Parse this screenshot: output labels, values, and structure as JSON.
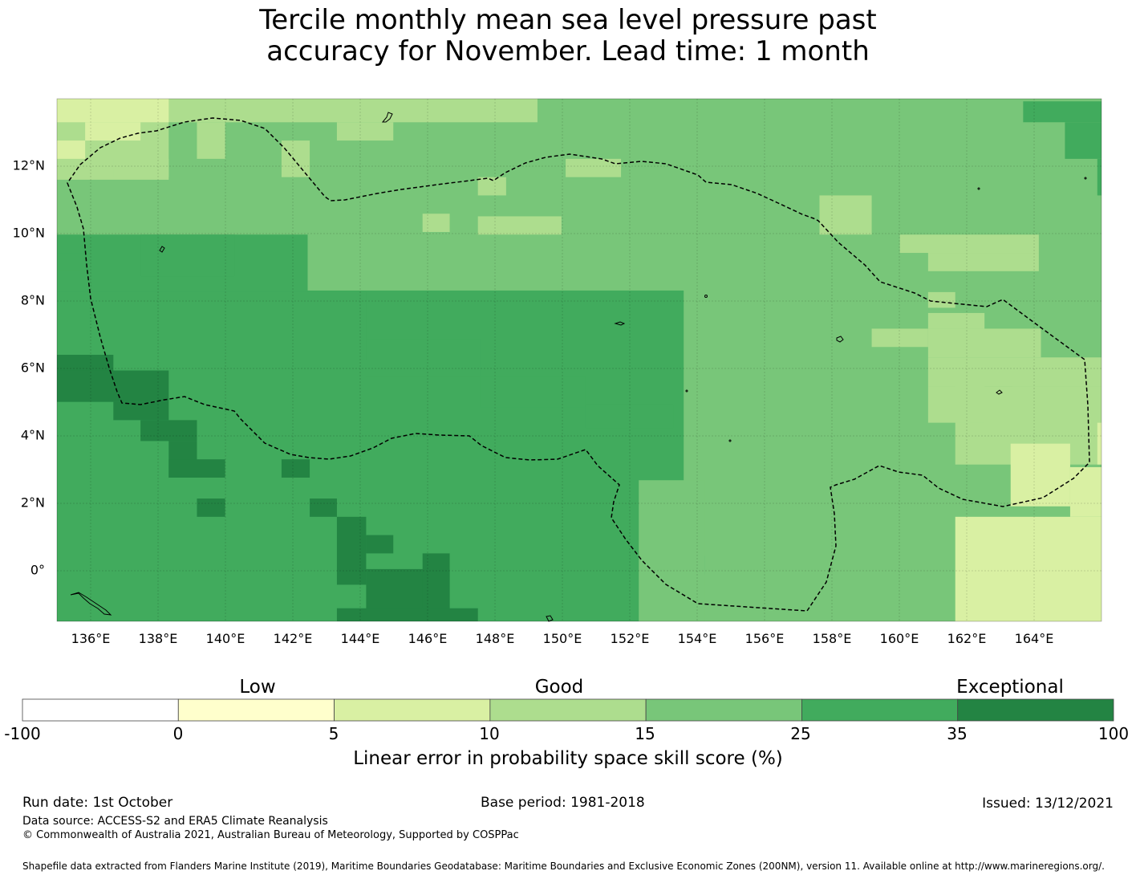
{
  "title": {
    "line1": "Tercile monthly mean sea level pressure past",
    "line2": "accuracy for November. Lead time: 1 month"
  },
  "map": {
    "lon_range": [
      135,
      166
    ],
    "lat_range": [
      -1.5,
      14
    ],
    "x_ticks": [
      "136°E",
      "138°E",
      "140°E",
      "142°E",
      "144°E",
      "146°E",
      "148°E",
      "150°E",
      "152°E",
      "154°E",
      "156°E",
      "158°E",
      "160°E",
      "162°E",
      "164°E"
    ],
    "y_ticks": [
      "12°N",
      "10°N",
      "8°N",
      "6°N",
      "4°N",
      "2°N",
      "0°"
    ]
  },
  "colorbar": {
    "categories": [
      "Low",
      "Good",
      "Exceptional"
    ],
    "boundaries": [
      "-100",
      "0",
      "5",
      "10",
      "15",
      "25",
      "35",
      "100"
    ],
    "colors": [
      "#ffffff",
      "#ffffcc",
      "#d9f0a3",
      "#addd8e",
      "#78c679",
      "#41ab5d",
      "#238443"
    ],
    "label": "Linear error in probability space skill score (%)"
  },
  "footer": {
    "run_date": "Run date: 1st October",
    "base_period": "Base period: 1981-2018",
    "issued": "Issued: 13/12/2021",
    "data_source": "Data source: ACCESS-S2 and ERA5 Climate Reanalysis",
    "copyright": "© Commonwealth of Australia 2021, Australian Bureau of Meteorology, Supported by COSPPac",
    "shapefile": "Shapefile data extracted from Flanders Marine Institute (2019), Maritime Boundaries Geodatabase: Maritime Boundaries and Exclusive Economic Zones (200NM), version 11. Available online at http://www.marineregions.org/."
  }
}
